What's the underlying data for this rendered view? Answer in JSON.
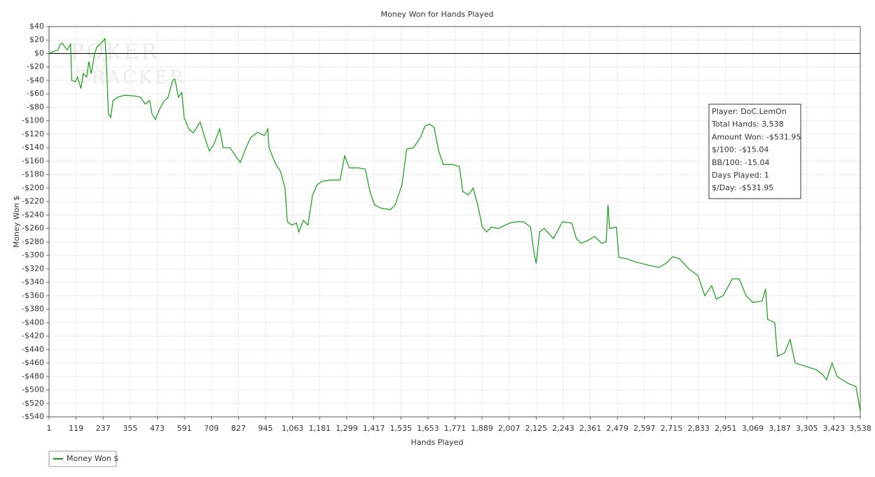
{
  "chart_data": {
    "type": "line",
    "title": "Money Won for Hands Played",
    "x_label": "Hands Played",
    "y_label": "Money Won $",
    "watermark": [
      "POKER",
      "TRACKER"
    ],
    "annotations": [
      "Player: DoC.LemOn",
      "Total Hands: 3,538",
      "Amount Won: -$531.95",
      "$/100: -$15.04",
      "BB/100: -15.04",
      "Days Played: 1",
      "$/Day: -$531.95"
    ],
    "grid": true,
    "legend": "bottom-left",
    "xlim": [
      1,
      3538
    ],
    "ylim": [
      -540,
      40
    ],
    "xticks": [
      1,
      119,
      237,
      355,
      473,
      591,
      709,
      827,
      945,
      {
        "value": 1063,
        "label": "1,063"
      },
      {
        "value": 1181,
        "label": "1,181"
      },
      {
        "value": 1299,
        "label": "1,299"
      },
      {
        "value": 1417,
        "label": "1,417"
      },
      {
        "value": 1535,
        "label": "1,535"
      },
      {
        "value": 1653,
        "label": "1,653"
      },
      {
        "value": 1771,
        "label": "1,771"
      },
      {
        "value": 1889,
        "label": "1,889"
      },
      {
        "value": 2007,
        "label": "2,007"
      },
      {
        "value": 2125,
        "label": "2,125"
      },
      {
        "value": 2243,
        "label": "2,243"
      },
      {
        "value": 2361,
        "label": "2,361"
      },
      {
        "value": 2479,
        "label": "2,479"
      },
      {
        "value": 2597,
        "label": "2,597"
      },
      {
        "value": 2715,
        "label": "2,715"
      },
      {
        "value": 2833,
        "label": "2,833"
      },
      {
        "value": 2951,
        "label": "2,951"
      },
      {
        "value": 3069,
        "label": "3,069"
      },
      {
        "value": 3187,
        "label": "3,187"
      },
      {
        "value": 3305,
        "label": "3,305"
      },
      {
        "value": 3423,
        "label": "3,423"
      },
      {
        "value": 3538,
        "label": "3,538"
      }
    ],
    "yticks": [
      {
        "value": 40,
        "label": "$40"
      },
      {
        "value": 20,
        "label": "$20"
      },
      {
        "value": 0,
        "label": "$0"
      },
      {
        "value": -20,
        "label": "-$20"
      },
      {
        "value": -40,
        "label": "-$40"
      },
      {
        "value": -60,
        "label": "-$60"
      },
      {
        "value": -80,
        "label": "-$80"
      },
      {
        "value": -100,
        "label": "-$100"
      },
      {
        "value": -120,
        "label": "-$120"
      },
      {
        "value": -140,
        "label": "-$140"
      },
      {
        "value": -160,
        "label": "-$160"
      },
      {
        "value": -180,
        "label": "-$180"
      },
      {
        "value": -200,
        "label": "-$200"
      },
      {
        "value": -220,
        "label": "-$220"
      },
      {
        "value": -240,
        "label": "-$240"
      },
      {
        "value": -260,
        "label": "-$260"
      },
      {
        "value": -280,
        "label": "-$280"
      },
      {
        "value": -300,
        "label": "-$300"
      },
      {
        "value": -320,
        "label": "-$320"
      },
      {
        "value": -340,
        "label": "-$340"
      },
      {
        "value": -360,
        "label": "-$360"
      },
      {
        "value": -380,
        "label": "-$380"
      },
      {
        "value": -400,
        "label": "-$400"
      },
      {
        "value": -420,
        "label": "-$420"
      },
      {
        "value": -440,
        "label": "-$440"
      },
      {
        "value": -460,
        "label": "-$460"
      },
      {
        "value": -480,
        "label": "-$480"
      },
      {
        "value": -500,
        "label": "-$500"
      },
      {
        "value": -520,
        "label": "-$520"
      },
      {
        "value": -540,
        "label": "-$540"
      }
    ],
    "x": [
      1,
      20,
      40,
      50,
      60,
      80,
      95,
      100,
      115,
      125,
      140,
      150,
      165,
      175,
      185,
      200,
      210,
      225,
      245,
      250,
      260,
      270,
      280,
      300,
      330,
      370,
      400,
      420,
      440,
      450,
      465,
      480,
      500,
      520,
      540,
      550,
      565,
      580,
      590,
      610,
      630,
      660,
      680,
      700,
      720,
      745,
      760,
      790,
      820,
      835,
      860,
      880,
      910,
      940,
      955,
      960,
      990,
      1010,
      1030,
      1040,
      1060,
      1080,
      1090,
      1110,
      1130,
      1150,
      1170,
      1190,
      1230,
      1270,
      1290,
      1310,
      1350,
      1380,
      1400,
      1420,
      1450,
      1490,
      1510,
      1540,
      1560,
      1590,
      1620,
      1640,
      1660,
      1680,
      1700,
      1720,
      1760,
      1790,
      1805,
      1830,
      1850,
      1870,
      1890,
      1910,
      1930,
      1960,
      1990,
      2010,
      2040,
      2070,
      2100,
      2115,
      2125,
      2140,
      2160,
      2200,
      2240,
      2280,
      2300,
      2320,
      2350,
      2380,
      2410,
      2430,
      2438,
      2445,
      2475,
      2485,
      2520,
      2560,
      2620,
      2660,
      2690,
      2720,
      2750,
      2790,
      2830,
      2860,
      2890,
      2910,
      2940,
      2980,
      3010,
      3040,
      3070,
      3110,
      3125,
      3134,
      3165,
      3177,
      3208,
      3232,
      3254,
      3300,
      3346,
      3376,
      3391,
      3415,
      3437,
      3483,
      3519,
      3538
    ],
    "series": [
      {
        "name": "Money Won $",
        "color": "#1a9a1a",
        "values": [
          0,
          3,
          5,
          14,
          15,
          5,
          14,
          -40,
          -42,
          -35,
          -52,
          -30,
          -35,
          -12,
          -30,
          0,
          10,
          14,
          22,
          -5,
          -90,
          -95,
          -70,
          -65,
          -62,
          -63,
          -65,
          -75,
          -70,
          -90,
          -98,
          -85,
          -72,
          -65,
          -40,
          -38,
          -65,
          -58,
          -95,
          -112,
          -118,
          -102,
          -125,
          -145,
          -135,
          -112,
          -140,
          -140,
          -155,
          -162,
          -140,
          -125,
          -117,
          -122,
          -112,
          -140,
          -165,
          -175,
          -200,
          -250,
          -255,
          -252,
          -265,
          -248,
          -255,
          -210,
          -195,
          -190,
          -188,
          -188,
          -152,
          -170,
          -170,
          -172,
          -205,
          -225,
          -230,
          -232,
          -225,
          -195,
          -142,
          -140,
          -125,
          -108,
          -105,
          -110,
          -145,
          -165,
          -165,
          -168,
          -205,
          -210,
          -200,
          -225,
          -258,
          -265,
          -258,
          -260,
          -255,
          -252,
          -250,
          -250,
          -258,
          -295,
          -312,
          -265,
          -260,
          -275,
          -250,
          -252,
          -275,
          -282,
          -278,
          -272,
          -282,
          -280,
          -225,
          -260,
          -258,
          -303,
          -305,
          -310,
          -315,
          -318,
          -312,
          -302,
          -305,
          -320,
          -330,
          -360,
          -345,
          -365,
          -360,
          -335,
          -335,
          -360,
          -370,
          -368,
          -350,
          -395,
          -400,
          -450,
          -445,
          -425,
          -460,
          -465,
          -470,
          -478,
          -485,
          -460,
          -480,
          -490,
          -495,
          -531.95
        ]
      }
    ]
  }
}
